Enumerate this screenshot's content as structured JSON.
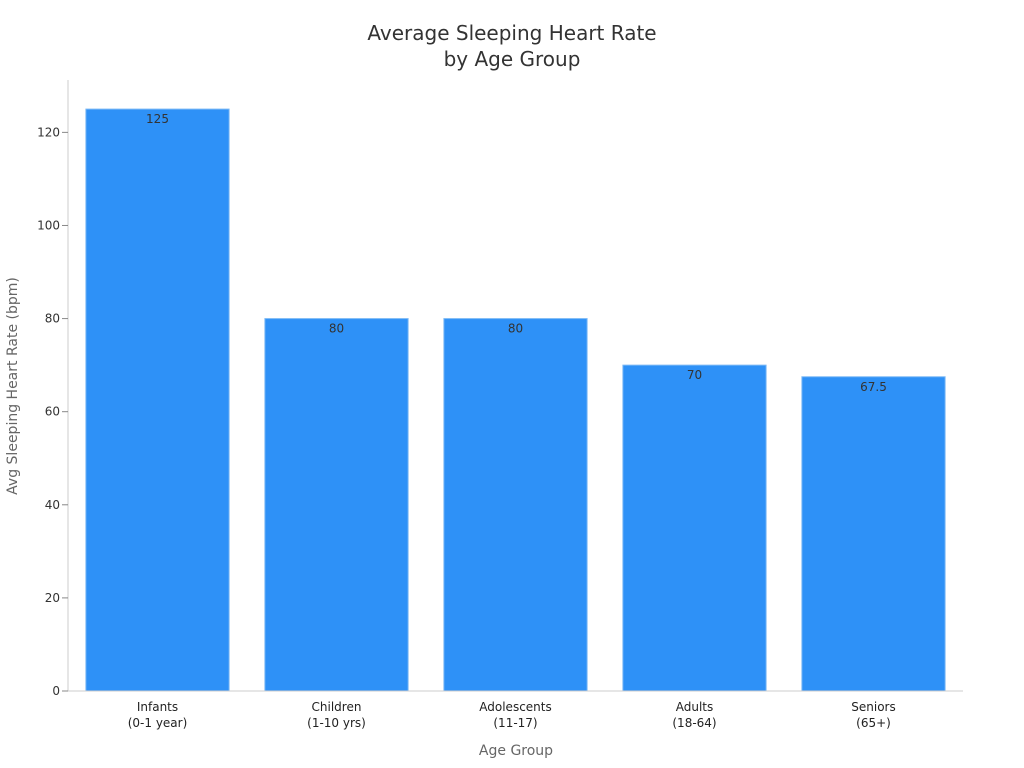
{
  "chart_data": {
    "type": "bar",
    "title": [
      "Average Sleeping Heart Rate",
      "by Age Group"
    ],
    "xlabel": "Age Group",
    "ylabel": "Avg Sleeping Heart Rate (bpm)",
    "categories": [
      [
        "Infants",
        "(0-1 year)"
      ],
      [
        "Children",
        "(1-10 yrs)"
      ],
      [
        "Adolescents",
        "(11-17)"
      ],
      [
        "Adults",
        "(18-64)"
      ],
      [
        "Seniors",
        "(65+)"
      ]
    ],
    "values": [
      125,
      80,
      80,
      70,
      67.5
    ],
    "data_labels": [
      "125",
      "80",
      "80",
      "70",
      "67.5"
    ],
    "y_ticks": [
      0,
      20,
      40,
      60,
      80,
      100,
      120
    ],
    "ylim": [
      0,
      131.25
    ],
    "grid": false,
    "legend": "none",
    "colors": {
      "bar": "#2e91f7",
      "bar_edge": "#7ab8f5"
    }
  }
}
